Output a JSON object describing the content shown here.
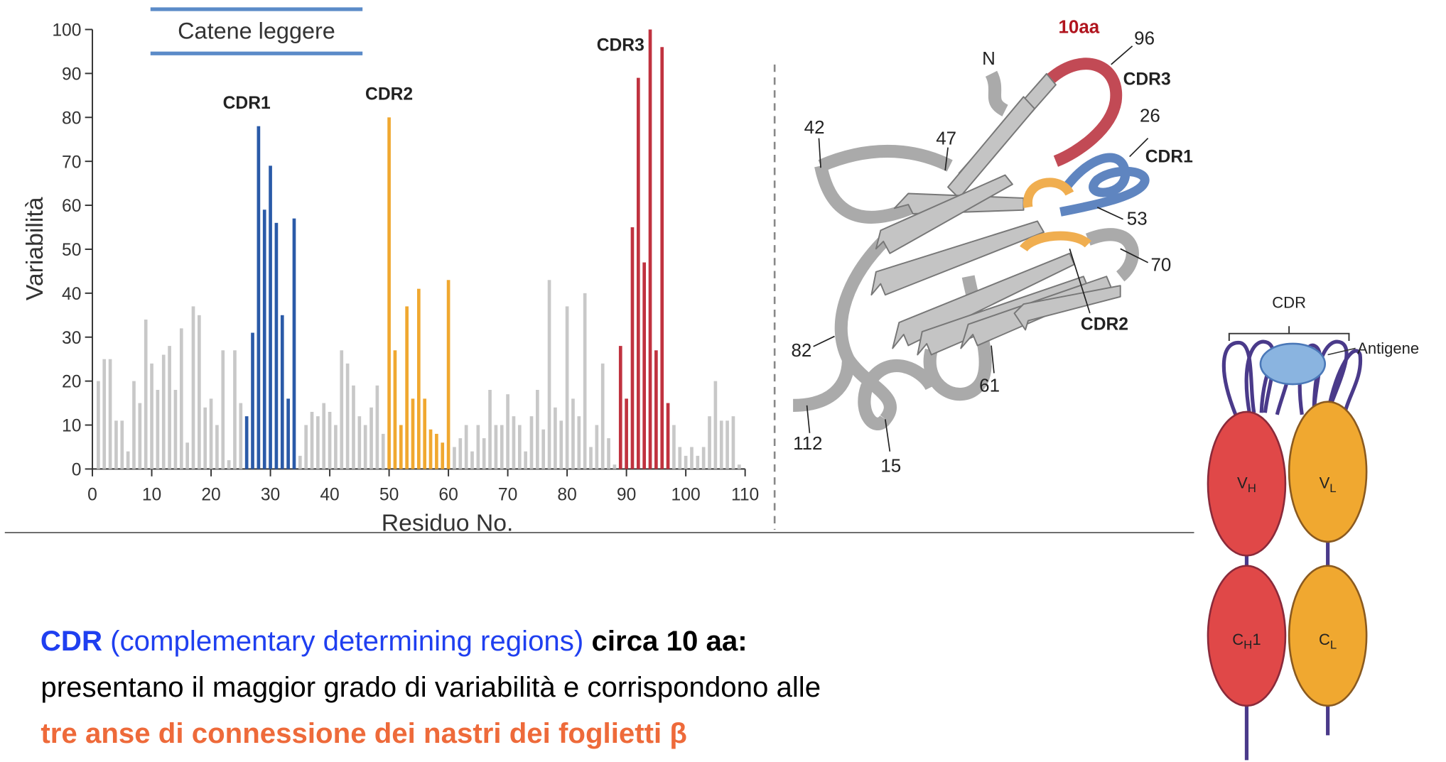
{
  "chart_data": {
    "type": "bar",
    "title": "Catene leggere",
    "x_label": "Residuo No.",
    "y_label": "Variabilità",
    "xlim": [
      0,
      110
    ],
    "xticks": [
      0,
      10,
      20,
      30,
      40,
      50,
      60,
      70,
      80,
      90,
      100,
      110
    ],
    "ylim": [
      0,
      100
    ],
    "yticks": [
      0,
      10,
      20,
      30,
      40,
      50,
      60,
      70,
      80,
      90,
      100
    ],
    "grid": false,
    "series": [
      {
        "color": "#c8c8c8",
        "x": [
          1,
          2,
          3,
          4,
          5,
          6,
          7,
          8,
          9,
          10,
          11,
          12,
          13,
          14,
          15,
          16,
          17,
          18,
          19,
          20,
          21,
          22,
          23,
          24,
          25,
          35,
          36,
          37,
          38,
          39,
          40,
          41,
          42,
          43,
          44,
          45,
          46,
          47,
          48,
          49,
          61,
          62,
          63,
          64,
          65,
          66,
          67,
          68,
          69,
          70,
          71,
          72,
          73,
          74,
          75,
          76,
          77,
          78,
          79,
          80,
          81,
          82,
          83,
          84,
          85,
          86,
          87,
          88,
          98,
          99,
          100,
          101,
          102,
          103,
          104,
          105,
          106,
          107,
          108,
          109
        ],
        "values": [
          20,
          25,
          25,
          11,
          11,
          4,
          20,
          15,
          34,
          24,
          18,
          26,
          28,
          18,
          32,
          6,
          37,
          35,
          14,
          16,
          10,
          27,
          2,
          27,
          15,
          3,
          10,
          13,
          12,
          15,
          13,
          10,
          27,
          24,
          19,
          12,
          10,
          14,
          19,
          8,
          5,
          7,
          10,
          4,
          10,
          7,
          18,
          10,
          10,
          17,
          12,
          10,
          4,
          12,
          18,
          9,
          43,
          14,
          11,
          37,
          16,
          12,
          40,
          5,
          10,
          24,
          7,
          1,
          10,
          5,
          3,
          5,
          3,
          5,
          12,
          20,
          11,
          11,
          12,
          1
        ]
      },
      {
        "name": "CDR1",
        "color": "#2a5aa8",
        "x": [
          26,
          27,
          28,
          29,
          30,
          31,
          32,
          33,
          34
        ],
        "values": [
          12,
          31,
          78,
          59,
          69,
          56,
          35,
          16,
          57
        ]
      },
      {
        "name": "CDR2",
        "color": "#f0a830",
        "x": [
          50,
          51,
          52,
          53,
          54,
          55,
          56,
          57,
          58,
          59,
          60
        ],
        "values": [
          80,
          27,
          10,
          37,
          16,
          41,
          16,
          9,
          8,
          6,
          43
        ]
      },
      {
        "name": "CDR3",
        "color": "#c0323f",
        "x": [
          89,
          90,
          91,
          92,
          93,
          94,
          95,
          96,
          97
        ],
        "values": [
          28,
          16,
          55,
          89,
          47,
          100,
          27,
          96,
          15
        ]
      }
    ]
  },
  "ribbon": {
    "labels": [
      "10aa",
      "96",
      "CDR3",
      "26",
      "CDR1",
      "53",
      "70",
      "CDR2",
      "61",
      "15",
      "112",
      "82",
      "42",
      "47",
      "N"
    ]
  },
  "antibody": {
    "cdr": "CDR",
    "antigen": "Antigene",
    "domains": [
      [
        "V",
        "H",
        ""
      ],
      [
        "V",
        "L",
        ""
      ],
      [
        "C",
        "H",
        "1"
      ],
      [
        "C",
        "L",
        ""
      ]
    ]
  },
  "text": {
    "line1": [
      " CDR",
      " (complementary determining regions)",
      " circa 10 aa:"
    ],
    "line2": "presentano il maggior grado di variabilità e corrispondono alle",
    "line3": "tre anse di connessione dei nastri dei foglietti β"
  }
}
